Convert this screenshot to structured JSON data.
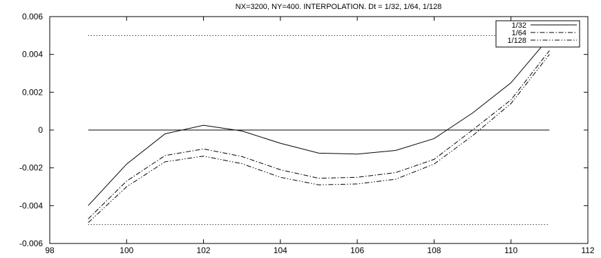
{
  "chart_data": {
    "type": "line",
    "title": "NX=3200, NY=400. INTERPOLATION. Dt = 1/32, 1/64, 1/128",
    "xlabel": "",
    "ylabel": "",
    "xlim": [
      98,
      112
    ],
    "ylim": [
      -0.006,
      0.006
    ],
    "xticks": [
      98,
      100,
      102,
      104,
      106,
      108,
      110,
      112
    ],
    "xtick_labels": [
      "98",
      "100",
      "102",
      "104",
      "106",
      "108",
      "110",
      "112"
    ],
    "yticks": [
      -0.006,
      -0.004,
      -0.002,
      0,
      0.002,
      0.004,
      0.006
    ],
    "ytick_labels": [
      "-0.006",
      "-0.004",
      "-0.002",
      "0",
      "0.002",
      "0.004",
      "0.006"
    ],
    "grid": false,
    "legend_position": "top-right",
    "x": [
      99,
      100,
      101,
      102,
      103,
      104,
      105,
      106,
      107,
      108,
      109,
      110,
      111
    ],
    "series": [
      {
        "name": "1/32",
        "style": "solid",
        "values": [
          -0.004,
          -0.0018,
          -0.0002,
          0.00025,
          -5e-05,
          -0.0007,
          -0.00122,
          -0.00127,
          -0.00108,
          -0.00045,
          0.0009,
          0.0025,
          0.0049
        ]
      },
      {
        "name": "1/64",
        "style": "dashdot",
        "values": [
          -0.0047,
          -0.0027,
          -0.00135,
          -0.001,
          -0.0014,
          -0.0021,
          -0.00255,
          -0.0025,
          -0.00225,
          -0.00155,
          0.0,
          0.0016,
          0.0042
        ]
      },
      {
        "name": "1/128",
        "style": "dashdotdot",
        "values": [
          -0.0049,
          -0.003,
          -0.00168,
          -0.00138,
          -0.00178,
          -0.0025,
          -0.0029,
          -0.00285,
          -0.0026,
          -0.0018,
          -0.0003,
          0.0014,
          0.004
        ]
      }
    ],
    "reference_lines": [
      {
        "y": 0.005,
        "style": "dotted",
        "x": [
          99,
          111
        ]
      },
      {
        "y": 0,
        "style": "solid",
        "x": [
          99,
          111
        ]
      },
      {
        "y": -0.005,
        "style": "dotted",
        "x": [
          99,
          111
        ]
      }
    ]
  }
}
